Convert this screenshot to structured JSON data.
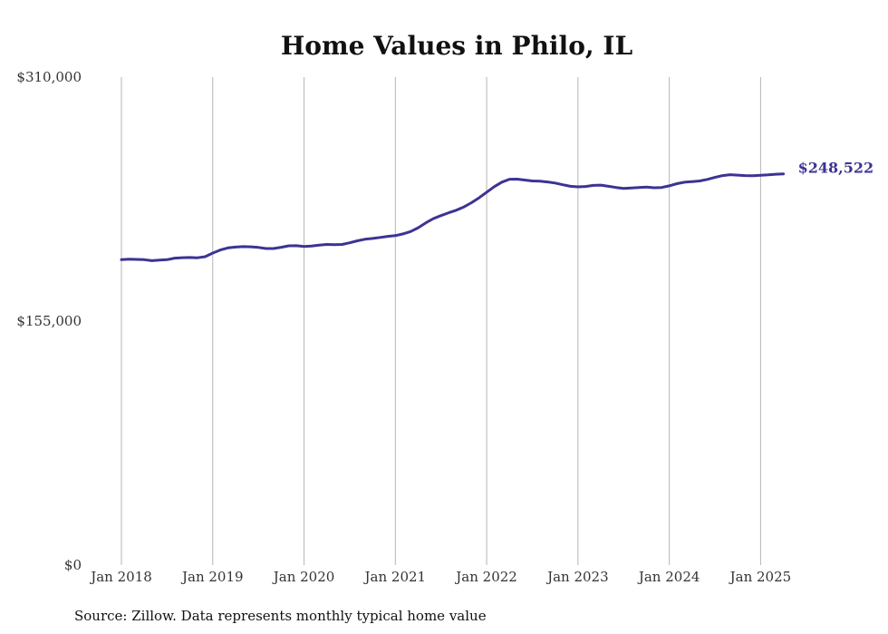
{
  "chart_data": {
    "type": "line",
    "title": "Home Values in Philo, IL",
    "xlabel": "",
    "ylabel": "",
    "source_note": "Source: Zillow. Data represents monthly typical home value",
    "y_ticks": [
      "$0",
      "$155,000",
      "$310,000"
    ],
    "y_tick_values": [
      0,
      155000,
      310000
    ],
    "ylim": [
      0,
      310000
    ],
    "x_ticks": [
      "Jan 2018",
      "Jan 2019",
      "Jan 2020",
      "Jan 2021",
      "Jan 2022",
      "Jan 2023",
      "Jan 2024",
      "Jan 2025"
    ],
    "x_tick_dates": [
      "2018-01",
      "2019-01",
      "2020-01",
      "2021-01",
      "2022-01",
      "2023-01",
      "2024-01",
      "2025-01"
    ],
    "xlim": [
      "2018-01",
      "2025-05"
    ],
    "grid": "vertical",
    "line_color": "#3c3394",
    "end_label": "$248,522",
    "series": [
      {
        "points": [
          [
            "2018-01",
            194000
          ],
          [
            "2018-02",
            194300
          ],
          [
            "2018-03",
            194200
          ],
          [
            "2018-04",
            194000
          ],
          [
            "2018-05",
            193400
          ],
          [
            "2018-06",
            193700
          ],
          [
            "2018-07",
            194000
          ],
          [
            "2018-08",
            195000
          ],
          [
            "2018-09",
            195300
          ],
          [
            "2018-10",
            195400
          ],
          [
            "2018-11",
            195200
          ],
          [
            "2018-12",
            195900
          ],
          [
            "2019-01",
            198200
          ],
          [
            "2019-02",
            200200
          ],
          [
            "2019-03",
            201500
          ],
          [
            "2019-04",
            202000
          ],
          [
            "2019-05",
            202300
          ],
          [
            "2019-06",
            202200
          ],
          [
            "2019-07",
            201800
          ],
          [
            "2019-08",
            201100
          ],
          [
            "2019-09",
            201100
          ],
          [
            "2019-10",
            201900
          ],
          [
            "2019-11",
            202800
          ],
          [
            "2019-12",
            202900
          ],
          [
            "2020-01",
            202400
          ],
          [
            "2020-02",
            202700
          ],
          [
            "2020-03",
            203300
          ],
          [
            "2020-04",
            203700
          ],
          [
            "2020-05",
            203600
          ],
          [
            "2020-06",
            203700
          ],
          [
            "2020-07",
            204700
          ],
          [
            "2020-08",
            206000
          ],
          [
            "2020-09",
            207000
          ],
          [
            "2020-10",
            207500
          ],
          [
            "2020-11",
            208100
          ],
          [
            "2020-12",
            208800
          ],
          [
            "2021-01",
            209300
          ],
          [
            "2021-02",
            210400
          ],
          [
            "2021-03",
            211900
          ],
          [
            "2021-04",
            214300
          ],
          [
            "2021-05",
            217400
          ],
          [
            "2021-06",
            220100
          ],
          [
            "2021-07",
            222000
          ],
          [
            "2021-08",
            223800
          ],
          [
            "2021-09",
            225400
          ],
          [
            "2021-10",
            227500
          ],
          [
            "2021-11",
            230200
          ],
          [
            "2021-12",
            233300
          ],
          [
            "2022-01",
            236900
          ],
          [
            "2022-02",
            240400
          ],
          [
            "2022-03",
            243300
          ],
          [
            "2022-04",
            245100
          ],
          [
            "2022-05",
            245200
          ],
          [
            "2022-06",
            244600
          ],
          [
            "2022-07",
            244000
          ],
          [
            "2022-08",
            243900
          ],
          [
            "2022-09",
            243400
          ],
          [
            "2022-10",
            242700
          ],
          [
            "2022-11",
            241600
          ],
          [
            "2022-12",
            240600
          ],
          [
            "2023-01",
            240300
          ],
          [
            "2023-02",
            240500
          ],
          [
            "2023-03",
            241200
          ],
          [
            "2023-04",
            241400
          ],
          [
            "2023-05",
            240600
          ],
          [
            "2023-06",
            239900
          ],
          [
            "2023-07",
            239300
          ],
          [
            "2023-08",
            239600
          ],
          [
            "2023-09",
            239900
          ],
          [
            "2023-10",
            240100
          ],
          [
            "2023-11",
            239700
          ],
          [
            "2023-12",
            239900
          ],
          [
            "2024-01",
            240900
          ],
          [
            "2024-02",
            242300
          ],
          [
            "2024-03",
            243200
          ],
          [
            "2024-04",
            243600
          ],
          [
            "2024-05",
            244000
          ],
          [
            "2024-06",
            245000
          ],
          [
            "2024-07",
            246300
          ],
          [
            "2024-08",
            247400
          ],
          [
            "2024-09",
            248000
          ],
          [
            "2024-10",
            247700
          ],
          [
            "2024-11",
            247400
          ],
          [
            "2024-12",
            247300
          ],
          [
            "2025-01",
            247600
          ],
          [
            "2025-02",
            247900
          ],
          [
            "2025-03",
            248300
          ],
          [
            "2025-04",
            248522
          ]
        ]
      }
    ]
  }
}
